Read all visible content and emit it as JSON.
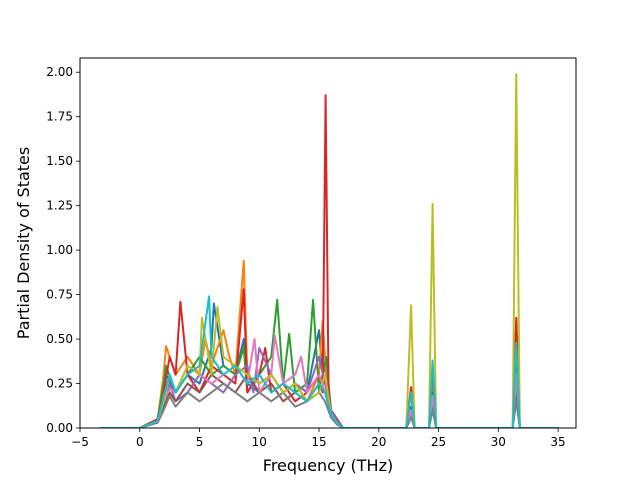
{
  "chart_data": {
    "type": "line",
    "title": "",
    "xlabel": "Frequency (THz)",
    "ylabel": "Partial Density of States",
    "xlim": [
      -5,
      36.5
    ],
    "ylim": [
      0,
      2.08
    ],
    "xticks": [
      -5,
      0,
      5,
      10,
      15,
      20,
      25,
      30,
      35
    ],
    "yticks": [
      0.0,
      0.25,
      0.5,
      0.75,
      1.0,
      1.25,
      1.5,
      1.75,
      2.0
    ],
    "xtick_labels": [
      "−5",
      "0",
      "5",
      "10",
      "15",
      "20",
      "25",
      "30",
      "35"
    ],
    "ytick_labels": [
      "0.00",
      "0.25",
      "0.50",
      "0.75",
      "1.00",
      "1.25",
      "1.50",
      "1.75",
      "2.00"
    ],
    "grid": false,
    "legend": false,
    "series_colors": [
      "#1f77b4",
      "#ff7f0e",
      "#2ca02c",
      "#d62728",
      "#9467bd",
      "#8c564b",
      "#e377c2",
      "#7f7f7f",
      "#bcbd22",
      "#17becf"
    ],
    "series": [
      {
        "x": [
          -3.3,
          0,
          1.5,
          2.0,
          2.2,
          3.0,
          4.0,
          5.0,
          6.0,
          6.2,
          7.0,
          8.0,
          8.7,
          9.0,
          10.0,
          11.0,
          11.5,
          12.0,
          13.0,
          14.0,
          15.0,
          15.3,
          15.6,
          16.0,
          16.5,
          17.0,
          22.3,
          22.7,
          23.0,
          24.2,
          24.5,
          24.8,
          31.2,
          31.5,
          31.8,
          35.0
        ],
        "y": [
          0,
          0,
          0.05,
          0.2,
          0.3,
          0.2,
          0.3,
          0.25,
          0.45,
          0.7,
          0.35,
          0.3,
          0.5,
          0.25,
          0.2,
          0.3,
          0.25,
          0.2,
          0.25,
          0.2,
          0.55,
          0.3,
          0.35,
          0.1,
          0.05,
          0,
          0,
          0.12,
          0,
          0,
          0.3,
          0,
          0,
          0.4,
          0,
          0
        ]
      },
      {
        "x": [
          -3.3,
          0,
          1.5,
          2.0,
          2.2,
          3.0,
          4.0,
          5.0,
          5.5,
          6.0,
          7.0,
          7.5,
          8.0,
          8.7,
          9.0,
          10.0,
          11.0,
          12.0,
          13.0,
          14.0,
          15.0,
          15.3,
          15.6,
          16.0,
          16.5,
          17.0,
          22.3,
          22.7,
          23.0,
          24.2,
          24.5,
          24.8,
          31.2,
          31.5,
          31.8,
          35.0
        ],
        "y": [
          0,
          0,
          0.05,
          0.3,
          0.46,
          0.3,
          0.4,
          0.3,
          0.5,
          0.35,
          0.55,
          0.4,
          0.3,
          0.94,
          0.3,
          0.25,
          0.3,
          0.2,
          0.25,
          0.15,
          0.3,
          0.6,
          0.3,
          0.1,
          0.05,
          0,
          0,
          0.2,
          0,
          0,
          0.25,
          0,
          0,
          0.6,
          0,
          0
        ]
      },
      {
        "x": [
          -3.3,
          0,
          1.5,
          2.0,
          2.2,
          3.0,
          4.0,
          5.0,
          6.0,
          7.0,
          8.0,
          8.7,
          9.0,
          10.0,
          11.0,
          11.5,
          12.0,
          12.5,
          13.0,
          14.0,
          14.5,
          15.0,
          15.3,
          15.6,
          16.0,
          16.5,
          17.0,
          22.3,
          22.7,
          23.0,
          24.2,
          24.5,
          24.8,
          31.2,
          31.5,
          31.8,
          35.0
        ],
        "y": [
          0,
          0,
          0.05,
          0.25,
          0.35,
          0.2,
          0.3,
          0.4,
          0.3,
          0.35,
          0.3,
          0.45,
          0.2,
          0.3,
          0.4,
          0.72,
          0.25,
          0.53,
          0.2,
          0.25,
          0.72,
          0.2,
          0.3,
          0.4,
          0.1,
          0.05,
          0,
          0,
          0.1,
          0,
          0,
          0.2,
          0,
          0,
          0.3,
          0,
          0
        ]
      },
      {
        "x": [
          -3.3,
          0,
          1.5,
          2.0,
          2.5,
          3.0,
          3.4,
          4.0,
          5.0,
          6.0,
          7.0,
          8.0,
          8.7,
          9.0,
          10.0,
          10.5,
          11.0,
          12.0,
          13.0,
          14.0,
          15.0,
          15.3,
          15.55,
          15.8,
          16.0,
          16.5,
          17.0,
          22.3,
          22.7,
          23.0,
          24.2,
          24.5,
          24.8,
          31.2,
          31.5,
          31.8,
          35.0
        ],
        "y": [
          0,
          0,
          0.05,
          0.2,
          0.4,
          0.3,
          0.71,
          0.3,
          0.2,
          0.35,
          0.3,
          0.25,
          0.78,
          0.2,
          0.3,
          0.45,
          0.2,
          0.25,
          0.15,
          0.2,
          0.3,
          0.2,
          1.87,
          0.2,
          0.1,
          0.05,
          0,
          0,
          0.23,
          0,
          0,
          0.35,
          0,
          0,
          0.62,
          0,
          0
        ]
      },
      {
        "x": [
          -3.3,
          0,
          1.5,
          2.0,
          2.5,
          3.0,
          4.0,
          5.0,
          6.0,
          7.0,
          8.0,
          9.0,
          9.5,
          10.0,
          11.0,
          12.0,
          13.0,
          14.0,
          15.0,
          15.5,
          16.0,
          16.5,
          17.0,
          22.3,
          22.7,
          23.0,
          24.2,
          24.5,
          24.8,
          31.2,
          31.5,
          31.8,
          35.0
        ],
        "y": [
          0,
          0,
          0.04,
          0.15,
          0.25,
          0.15,
          0.2,
          0.3,
          0.25,
          0.2,
          0.3,
          0.35,
          0.2,
          0.45,
          0.3,
          0.2,
          0.25,
          0.2,
          0.4,
          0.25,
          0.1,
          0.04,
          0,
          0,
          0.08,
          0,
          0,
          0.15,
          0,
          0,
          0.25,
          0,
          0
        ]
      },
      {
        "x": [
          -3.3,
          0,
          1.5,
          2.0,
          2.5,
          3.0,
          4.0,
          5.0,
          6.0,
          7.0,
          8.0,
          9.0,
          10.0,
          11.0,
          12.0,
          13.0,
          14.0,
          15.0,
          15.5,
          16.0,
          16.5,
          17.0,
          22.3,
          22.7,
          23.0,
          24.2,
          24.5,
          24.8,
          31.2,
          31.5,
          31.8,
          35.0
        ],
        "y": [
          0,
          0,
          0.04,
          0.12,
          0.2,
          0.15,
          0.25,
          0.2,
          0.3,
          0.25,
          0.2,
          0.3,
          0.2,
          0.25,
          0.15,
          0.2,
          0.15,
          0.25,
          0.2,
          0.08,
          0.03,
          0,
          0,
          0.07,
          0,
          0,
          0.12,
          0,
          0,
          0.2,
          0,
          0
        ]
      },
      {
        "x": [
          -3.3,
          0,
          1.5,
          2.0,
          2.5,
          3.0,
          4.0,
          5.0,
          6.0,
          7.0,
          8.0,
          9.0,
          9.6,
          10.0,
          11.0,
          11.3,
          12.0,
          13.0,
          13.5,
          14.0,
          15.0,
          15.5,
          16.0,
          16.5,
          17.0,
          22.3,
          22.7,
          23.0,
          24.2,
          24.5,
          24.8,
          31.2,
          31.5,
          31.8,
          35.0
        ],
        "y": [
          0,
          0,
          0.04,
          0.15,
          0.22,
          0.2,
          0.35,
          0.3,
          0.25,
          0.3,
          0.35,
          0.25,
          0.5,
          0.2,
          0.3,
          0.52,
          0.25,
          0.3,
          0.4,
          0.2,
          0.3,
          0.2,
          0.08,
          0.03,
          0,
          0,
          0.1,
          0,
          0,
          0.18,
          0,
          0,
          0.3,
          0,
          0
        ]
      },
      {
        "x": [
          -3.3,
          0,
          1.5,
          2.0,
          2.5,
          3.0,
          4.0,
          5.0,
          6.0,
          7.0,
          8.0,
          9.0,
          10.0,
          11.0,
          12.0,
          13.0,
          14.0,
          15.0,
          15.5,
          16.0,
          16.5,
          17.0,
          22.3,
          22.7,
          23.0,
          24.2,
          24.5,
          24.8,
          31.2,
          31.5,
          31.8,
          35.0
        ],
        "y": [
          0,
          0,
          0.03,
          0.1,
          0.18,
          0.12,
          0.2,
          0.15,
          0.2,
          0.25,
          0.2,
          0.15,
          0.2,
          0.15,
          0.2,
          0.12,
          0.15,
          0.2,
          0.15,
          0.06,
          0.02,
          0,
          0,
          0.06,
          0,
          0,
          0.1,
          0,
          0,
          0.15,
          0,
          0
        ]
      },
      {
        "x": [
          -3.3,
          0,
          1.5,
          2.0,
          2.5,
          3.0,
          4.0,
          5.0,
          5.2,
          6.0,
          6.5,
          7.0,
          8.0,
          9.0,
          10.0,
          11.0,
          12.0,
          13.0,
          14.0,
          15.0,
          15.5,
          16.0,
          16.5,
          17.0,
          22.3,
          22.7,
          23.0,
          24.2,
          24.5,
          24.8,
          31.2,
          31.5,
          31.8,
          35.0
        ],
        "y": [
          0,
          0,
          0.04,
          0.15,
          0.3,
          0.2,
          0.35,
          0.3,
          0.62,
          0.3,
          0.68,
          0.4,
          0.35,
          0.3,
          0.25,
          0.3,
          0.2,
          0.25,
          0.15,
          0.2,
          0.3,
          0.08,
          0.03,
          0,
          0,
          0.69,
          0,
          0,
          1.26,
          0,
          0,
          1.99,
          0,
          0
        ]
      },
      {
        "x": [
          -3.3,
          0,
          1.5,
          2.0,
          2.5,
          3.0,
          4.0,
          5.0,
          5.8,
          6.0,
          7.0,
          8.0,
          9.0,
          10.0,
          11.0,
          12.0,
          13.0,
          14.0,
          15.0,
          15.5,
          16.0,
          16.5,
          17.0,
          22.3,
          22.7,
          23.0,
          24.2,
          24.5,
          24.8,
          31.2,
          31.5,
          31.8,
          35.0
        ],
        "y": [
          0,
          0,
          0.04,
          0.18,
          0.3,
          0.2,
          0.3,
          0.35,
          0.74,
          0.4,
          0.3,
          0.35,
          0.25,
          0.3,
          0.2,
          0.25,
          0.2,
          0.15,
          0.25,
          0.2,
          0.08,
          0.03,
          0,
          0,
          0.2,
          0,
          0,
          0.38,
          0,
          0,
          0.48,
          0,
          0
        ]
      }
    ]
  }
}
